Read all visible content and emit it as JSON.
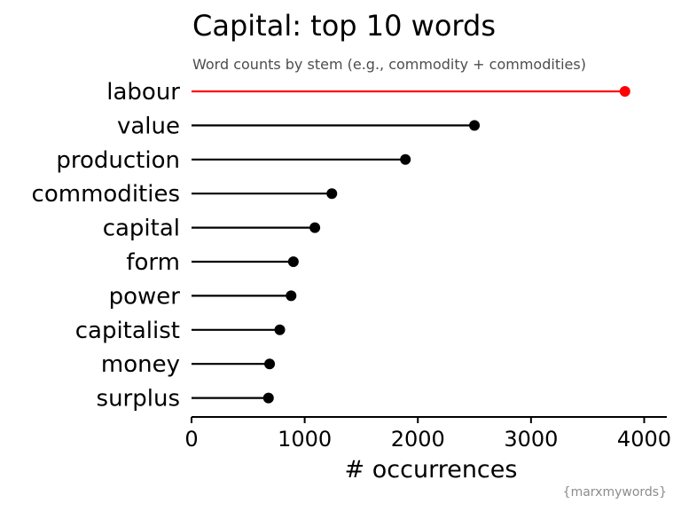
{
  "chart_data": {
    "type": "lollipop",
    "title": "Capital: top 10 words",
    "subtitle": "Word counts by stem (e.g., commodity + commodities)",
    "xlabel": "# occurrences",
    "ylabel": "",
    "xlim": [
      0,
      4200
    ],
    "xticks": [
      0,
      1000,
      2000,
      3000,
      4000
    ],
    "xtick_labels": [
      "0",
      "1000",
      "2000",
      "3000",
      "4000"
    ],
    "categories": [
      "labour",
      "value",
      "production",
      "commodities",
      "capital",
      "form",
      "power",
      "capitalist",
      "money",
      "surplus"
    ],
    "values": [
      3830,
      2500,
      1890,
      1240,
      1090,
      900,
      880,
      780,
      690,
      680
    ],
    "highlight_category": "labour",
    "highlight_color": "#ff0000",
    "default_color": "#000000",
    "grid": false,
    "caption": "{marxmywords}"
  }
}
